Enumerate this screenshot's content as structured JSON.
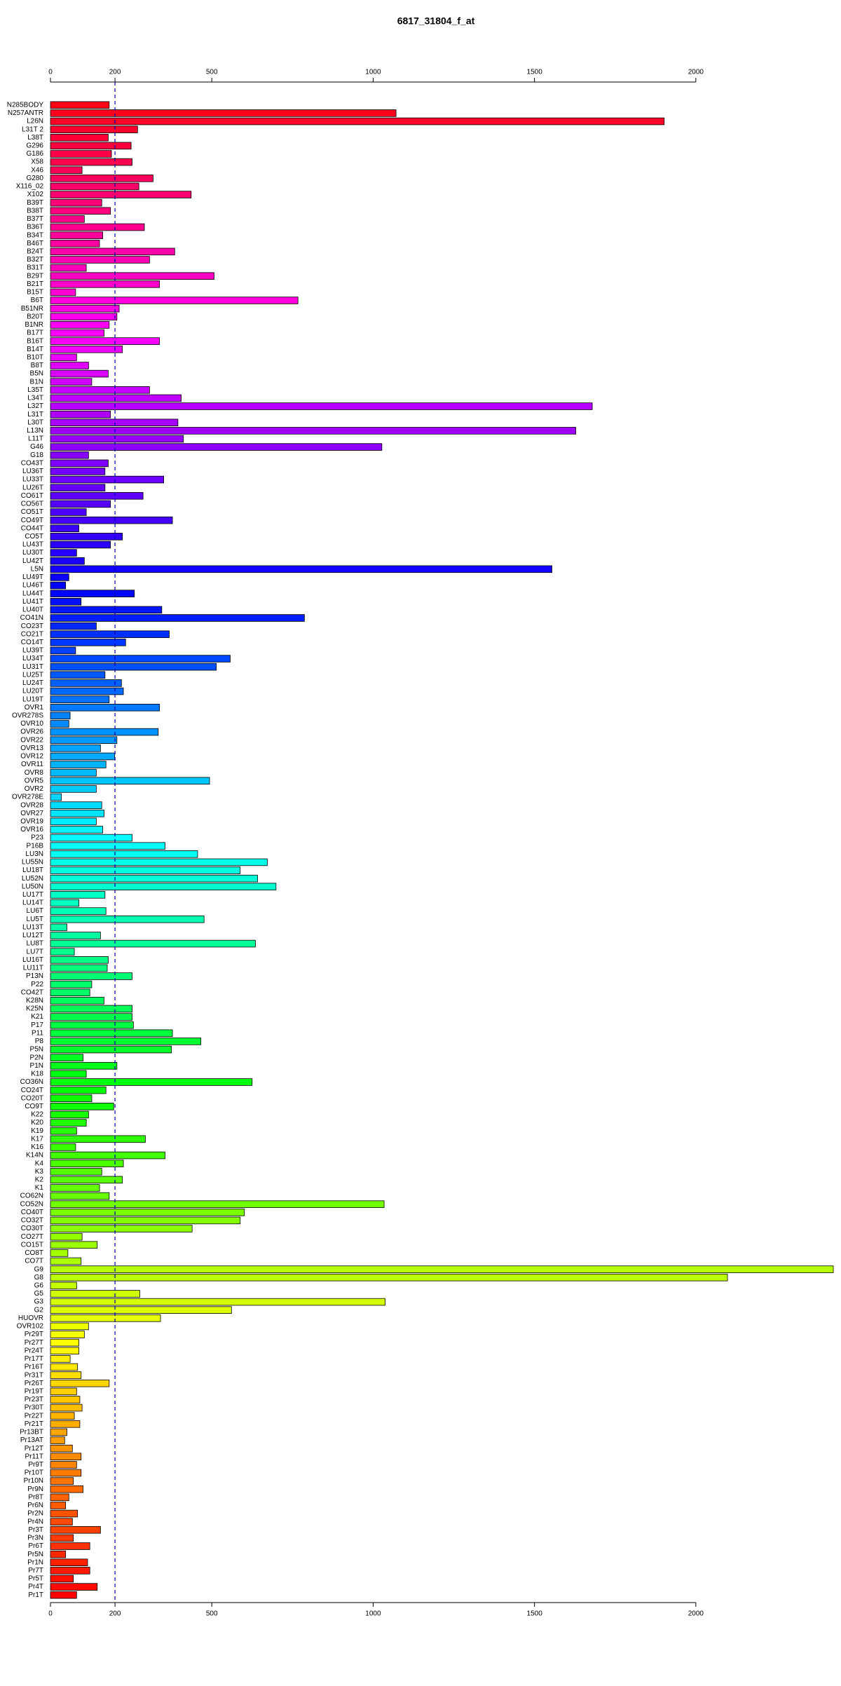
{
  "chart_data": {
    "type": "barh",
    "title": "6817_31804_f_at",
    "categories": [
      "N285BODY",
      "N257ANTR",
      "L26N",
      "L31T 2",
      "L38T",
      "G296",
      "G186",
      "X58",
      "X46",
      "G280",
      "X116_02",
      "X102",
      "B39T",
      "B38T",
      "B37T",
      "B36T",
      "B34T",
      "B46T",
      "B24T",
      "B32T",
      "B31T",
      "B29T",
      "B21T",
      "B15T",
      "B6T",
      "B51NR",
      "B20T",
      "B1NR",
      "B17T",
      "B16T",
      "B14T",
      "B10T",
      "B8T",
      "B5N",
      "B1N",
      "L35T",
      "L34T",
      "L32T",
      "L31T",
      "L30T",
      "L13N",
      "L11T",
      "G46",
      "G18",
      "CO43T",
      "LU36T",
      "LU33T",
      "LU26T",
      "CO61T",
      "CO56T",
      "CO51T",
      "CO49T",
      "CO44T",
      "CO5T",
      "LU43T",
      "LU30T",
      "LU42T",
      "L5N",
      "LU49T",
      "LU46T",
      "LU44T",
      "LU41T",
      "LU40T",
      "CO41N",
      "CO23T",
      "CO21T",
      "CO14T",
      "LU39T",
      "LU34T",
      "LU31T",
      "LU25T",
      "LU24T",
      "LU20T",
      "LU19T",
      "OVR1",
      "OVR278S",
      "OVR10",
      "OVR26",
      "OVR22",
      "OVR13",
      "OVR12",
      "OVR11",
      "OVR8",
      "OVR5",
      "OVR2",
      "OVR278E",
      "OVR28",
      "OVR27",
      "OVR19",
      "OVR16",
      "P23",
      "P16B",
      "LU3N",
      "LU55N",
      "LU18T",
      "LU52N",
      "LU50N",
      "LU17T",
      "LU14T",
      "LU6T",
      "LU5T",
      "LU13T",
      "LU12T",
      "LU8T",
      "LU7T",
      "LU16T",
      "LU11T",
      "P13N",
      "P22",
      "CO42T",
      "K28N",
      "K25N",
      "K21",
      "P17",
      "P11",
      "P8",
      "P5N",
      "P2N",
      "P1N",
      "K18",
      "CO36N",
      "CO24T",
      "CO20T",
      "CO9T",
      "K22",
      "K20",
      "K19",
      "K17",
      "K16",
      "K14N",
      "K4",
      "K3",
      "K2",
      "K1",
      "CO62N",
      "CO52N",
      "CO40T",
      "CO32T",
      "CO30T",
      "CO27T",
      "CO15T",
      "CO8T",
      "CO7T",
      "G9",
      "G8",
      "G6",
      "G5",
      "G3",
      "G2",
      "HUOVR",
      "OVR102",
      "Pr29T",
      "Pr27T",
      "Pr24T",
      "Pr17T",
      "Pr16T",
      "Pr31T",
      "Pr26T",
      "Pr19T",
      "Pr23T",
      "Pr30T",
      "Pr22T",
      "Pr21T",
      "Pr13BT",
      "Pr13AT",
      "Pr12T",
      "Pr11T",
      "Pr9T",
      "Pr10T",
      "Pr10N",
      "Pr9N",
      "Pr8T",
      "Pr6N",
      "Pr2N",
      "Pr4N",
      "Pr3T",
      "Pr3N",
      "Pr6T",
      "Pr5N",
      "Pr1N",
      "Pr7T",
      "Pr5T",
      "Pr4T",
      "Pr1T"
    ],
    "values": [
      182,
      1071,
      1902,
      270,
      179,
      250,
      189,
      253,
      98,
      318,
      274,
      436,
      159,
      186,
      105,
      291,
      162,
      152,
      385,
      307,
      111,
      507,
      338,
      78,
      767,
      213,
      206,
      182,
      166,
      338,
      223,
      81,
      118,
      179,
      128,
      307,
      405,
      1679,
      186,
      395,
      1628,
      412,
      1027,
      118,
      179,
      169,
      351,
      169,
      287,
      186,
      111,
      378,
      88,
      223,
      186,
      81,
      105,
      1554,
      57,
      47,
      260,
      95,
      345,
      787,
      142,
      368,
      233,
      78,
      557,
      514,
      169,
      220,
      226,
      182,
      338,
      61,
      57,
      334,
      206,
      155,
      199,
      172,
      142,
      493,
      142,
      34,
      159,
      166,
      142,
      162,
      253,
      355,
      456,
      672,
      588,
      642,
      699,
      169,
      88,
      172,
      476,
      51,
      155,
      635,
      74,
      179,
      176,
      253,
      128,
      122,
      166,
      253,
      253,
      257,
      378,
      466,
      375,
      101,
      206,
      111,
      625,
      172,
      128,
      196,
      118,
      111,
      81,
      294,
      78,
      355,
      226,
      159,
      223,
      152,
      182,
      1034,
      601,
      588,
      439,
      98,
      145,
      54,
      95,
      2426,
      2098,
      81,
      277,
      1037,
      561,
      341,
      118,
      105,
      88,
      88,
      61,
      84,
      95,
      182,
      81,
      91,
      98,
      74,
      91,
      51,
      44,
      68,
      95,
      81,
      95,
      71,
      101,
      57,
      47,
      84,
      68,
      155,
      71,
      122,
      47,
      115,
      122,
      71,
      145,
      81
    ],
    "palette": "rainbow",
    "hue_range": [
      355,
      0
    ],
    "xlim": [
      0,
      2426
    ],
    "xticks": [
      0,
      200,
      500,
      1000,
      1500,
      2000
    ],
    "reference_line": 200
  }
}
